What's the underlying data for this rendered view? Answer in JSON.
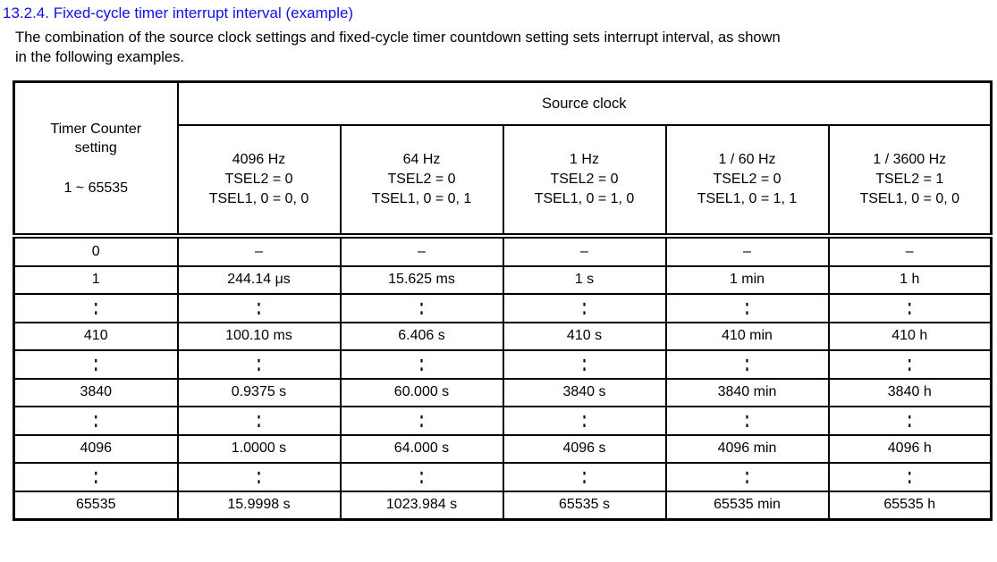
{
  "page": {
    "heading": "13.2.4. Fixed-cycle timer interrupt interval (example)",
    "intro_lines": [
      "The combination of the source clock settings and fixed-cycle timer countdown setting sets interrupt interval, as shown",
      "in the following examples."
    ]
  },
  "colors": {
    "heading_blue": "#0f0fee",
    "text": "#000000",
    "border": "#000000"
  },
  "table": {
    "corner_header": {
      "title": "Timer Counter setting",
      "range": "1 ~ 65535"
    },
    "group_header": "Source clock",
    "columns": [
      {
        "freq": "4096 Hz",
        "tsel2": "TSEL2 = 0",
        "tsel10": "TSEL1, 0 = 0, 0"
      },
      {
        "freq": "64 Hz",
        "tsel2": "TSEL2 = 0",
        "tsel10": "TSEL1, 0 = 0, 1"
      },
      {
        "freq": "1 Hz",
        "tsel2": "TSEL2 = 0",
        "tsel10": "TSEL1, 0 = 1, 0"
      },
      {
        "freq": "1 / 60 Hz",
        "tsel2": "TSEL2 = 0",
        "tsel10": "TSEL1, 0 = 1, 1"
      },
      {
        "freq": "1 / 3600 Hz",
        "tsel2": "TSEL2 = 1",
        "tsel10": "TSEL1, 0 = 0, 0"
      }
    ],
    "rows": [
      {
        "type": "data",
        "cells": [
          "0",
          "–",
          "–",
          "–",
          "–",
          "–"
        ]
      },
      {
        "type": "data",
        "cells": [
          "1",
          "244.14 μs",
          "15.625 ms",
          "1 s",
          "1 min",
          "1 h"
        ]
      },
      {
        "type": "ellipsis",
        "cells": [
          ":",
          ":",
          ":",
          ":",
          ":",
          ":"
        ]
      },
      {
        "type": "data",
        "cells": [
          "410",
          "100.10 ms",
          "6.406 s",
          "410 s",
          "410 min",
          "410 h"
        ]
      },
      {
        "type": "ellipsis",
        "cells": [
          ":",
          ":",
          ":",
          ":",
          ":",
          ":"
        ]
      },
      {
        "type": "data",
        "cells": [
          "3840",
          "0.9375 s",
          "60.000 s",
          "3840 s",
          "3840 min",
          "3840 h"
        ]
      },
      {
        "type": "ellipsis",
        "cells": [
          ":",
          ":",
          ":",
          ":",
          ":",
          ":"
        ]
      },
      {
        "type": "data",
        "cells": [
          "4096",
          "1.0000 s",
          "64.000 s",
          "4096 s",
          "4096 min",
          "4096 h"
        ]
      },
      {
        "type": "ellipsis",
        "cells": [
          ":",
          ":",
          ":",
          ":",
          ":",
          ":"
        ]
      },
      {
        "type": "data",
        "cells": [
          "65535",
          "15.9998 s",
          "1023.984 s",
          "65535 s",
          "65535 min",
          "65535 h"
        ]
      }
    ]
  }
}
